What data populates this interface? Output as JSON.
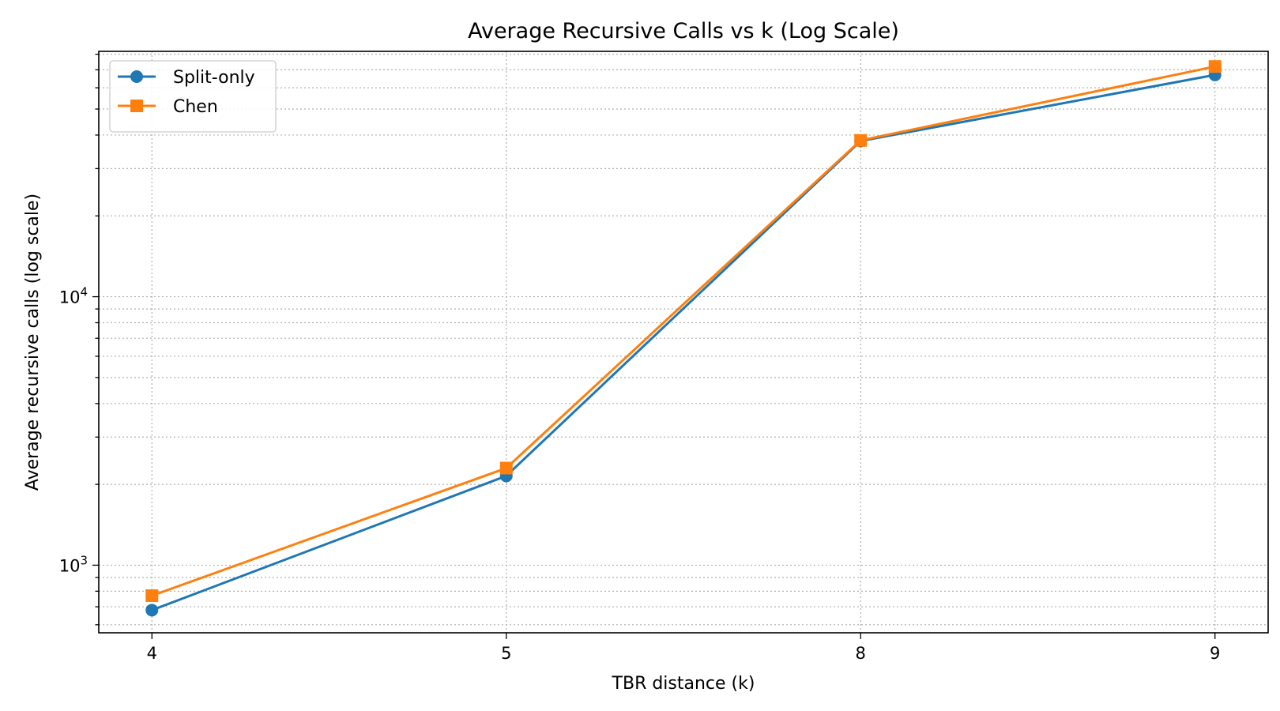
{
  "chart_data": {
    "type": "line",
    "title": "Average Recursive Calls vs k (Log Scale)",
    "xlabel": "TBR distance (k)",
    "ylabel": "Average recursive calls (log scale)",
    "categories": [
      "4",
      "5",
      "8",
      "9"
    ],
    "yscale": "log",
    "ylim": [
      560,
      82000
    ],
    "ytick_major": [
      {
        "value": 1000,
        "base": "10",
        "exp": "3"
      },
      {
        "value": 10000,
        "base": "10",
        "exp": "4"
      }
    ],
    "grid": true,
    "legend_position": "top-left",
    "series": [
      {
        "name": "Split-only",
        "values": [
          680,
          2150,
          38000,
          67000
        ],
        "color": "#1f77b4",
        "marker": "circle"
      },
      {
        "name": "Chen",
        "values": [
          770,
          2300,
          38200,
          72000
        ],
        "color": "#ff7f0e",
        "marker": "square"
      }
    ]
  }
}
